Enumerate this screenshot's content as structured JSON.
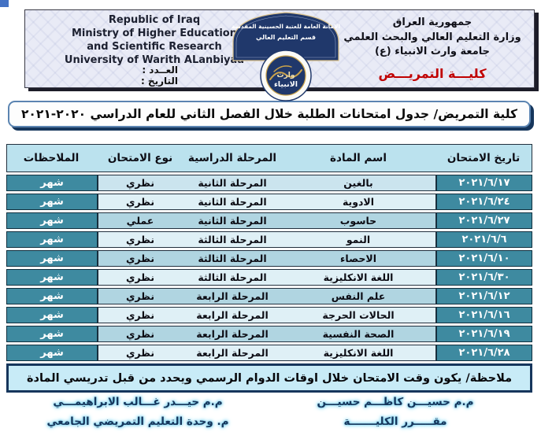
{
  "header": {
    "left_block": {
      "lines": [
        "Republic of Iraq",
        "Ministry of Higher Education",
        "and Scientific Research",
        "University of Warith ALanbiyaa"
      ],
      "number_label": "العــدد :",
      "date_label": "التاريخ :"
    },
    "center": {
      "arch_line1": "الامانة العامة للعتبة الحسينية المقدسة",
      "arch_line2": "قسم التعليم العالي",
      "logo_line1": "وارث",
      "logo_line2": "الانبياء",
      "logo_ring_text": "UNIVERSITY OF WARITH AL-ANBIYAA"
    },
    "right_block": {
      "lines": [
        "جمهورية العراق",
        "وزارة التعليم العالي والبحث العلمي",
        "جامعة وارث الانبياء (ع)"
      ],
      "college": "كليـــة التمريـــض"
    }
  },
  "title": "كلية التمريض/ جدول امتحانات الطلبة خلال الفصل الثاني للعام الدراسي ٢٠٢٠-٢٠٢١",
  "table": {
    "columns": [
      "تاريخ الامتحان",
      "اسم المادة",
      "المرحلة الدراسية",
      "نوع الامتحان",
      "الملاحظات"
    ],
    "rows": [
      {
        "date": "٢٠٢١/٦/١٧",
        "subject": "بالغين",
        "stage": "المرحلة الثانية",
        "type": "نظري",
        "notes": "شهر"
      },
      {
        "date": "٢٠٢١/٦/٢٤",
        "subject": "الادوية",
        "stage": "المرحلة الثانية",
        "type": "نظري",
        "notes": "شهر"
      },
      {
        "date": "٢٠٢١/٦/٢٧",
        "subject": "حاسوب",
        "stage": "المرحلة الثانية",
        "type": "عملي",
        "notes": "شهر"
      },
      {
        "date": "٢٠٢١/٦/٦",
        "subject": "النمو",
        "stage": "المرحلة الثالثة",
        "type": "نظري",
        "notes": "شهر"
      },
      {
        "date": "٢٠٢١/٦/١٠",
        "subject": "الاحصاء",
        "stage": "المرحلة الثالثة",
        "type": "نظري",
        "notes": "شهر"
      },
      {
        "date": "٢٠٢١/٦/٣٠",
        "subject": "اللغة الانكليزية",
        "stage": "المرحلة الثالثة",
        "type": "نظري",
        "notes": "شهر"
      },
      {
        "date": "٢٠٢١/٦/١٢",
        "subject": "علم النفس",
        "stage": "المرحلة الرابعة",
        "type": "نظري",
        "notes": "شهر"
      },
      {
        "date": "٢٠٢١/٦/١٦",
        "subject": "الحالات الحرجة",
        "stage": "المرحلة الرابعة",
        "type": "نظري",
        "notes": "شهر"
      },
      {
        "date": "٢٠٢١/٦/١٩",
        "subject": "الصحة النفسية",
        "stage": "المرحلة الرابعة",
        "type": "نظري",
        "notes": "شهر"
      },
      {
        "date": "٢٠٢١/٦/٢٨",
        "subject": "اللغة الانكليزية",
        "stage": "المرحلة الرابعة",
        "type": "نظري",
        "notes": "شهر"
      }
    ]
  },
  "note": "ملاحظة/ يكون وقت الامتحان خلال اوقات الدوام الرسمي ويحدد من قبل تدريسي المادة",
  "signatures": {
    "right": {
      "name": "م.م حسيـــن كاظـــم حسيـــن",
      "role": "مقـــــرر الكليـــــــة"
    },
    "left": {
      "name": "م.م حيـــدر غـــالب الابراهيمـــي",
      "role": "م. وحدة التعليم التمريضي الجامعي"
    }
  },
  "colors": {
    "teal": "#3e8aa0",
    "table_header_blue": "#bbe2ee",
    "row_pale": "#dff0f6",
    "row_dark": "#b0d5e1",
    "row_first": "#cbe4ee",
    "navy": "#16365c",
    "college_red": "#c00000",
    "title_border_blue": "#5b84b1",
    "note_bg": "#c8ebf7",
    "glow": "#7fd4f0",
    "arch_blue": "#20386b",
    "gold": "#c9a24a"
  }
}
